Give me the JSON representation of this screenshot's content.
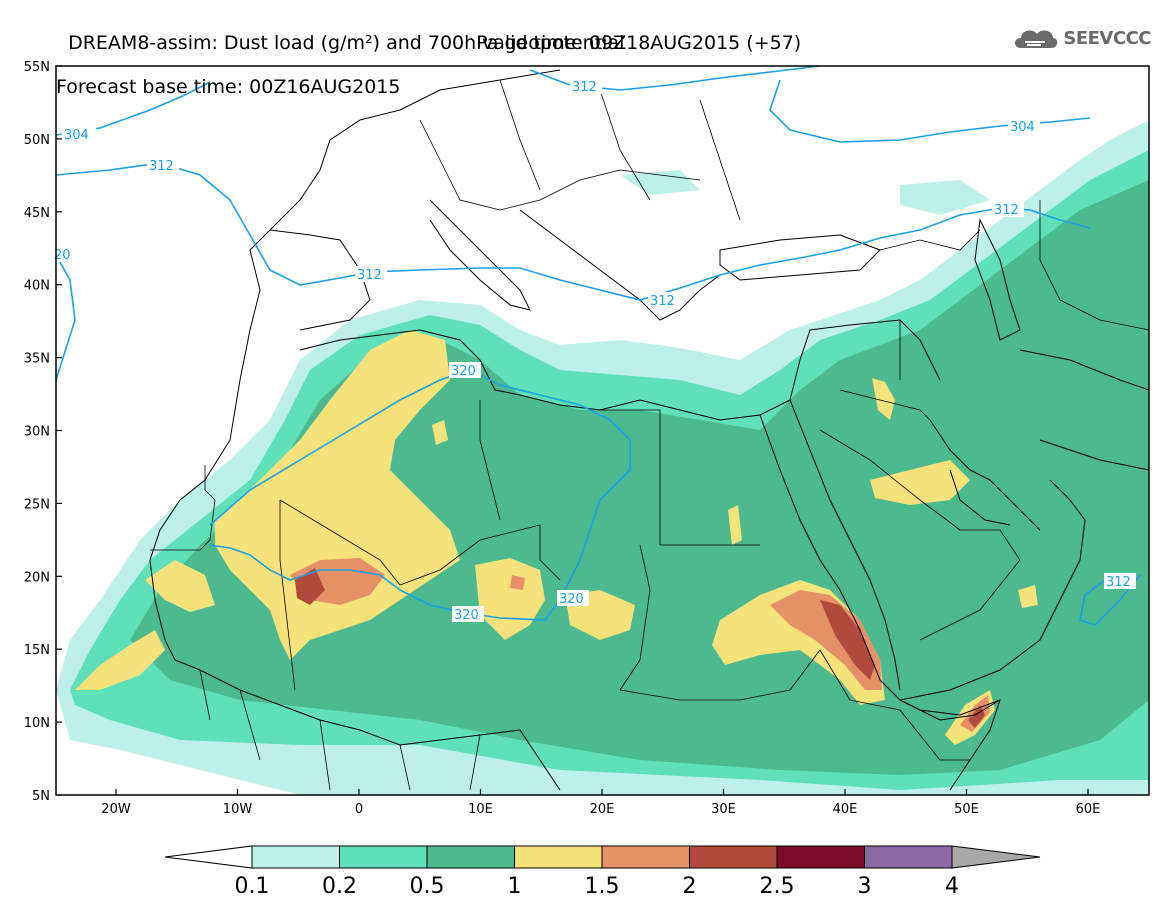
{
  "title": {
    "line1": "DREAM8-assim: Dust load (g/m²) and 700hPa geopotential",
    "line2": "Forecast base time: 00Z16AUG2015",
    "valid": "valid time: 09Z18AUG2015 (+57)"
  },
  "logo": {
    "text": "SEEVCCC",
    "icon": "cloud-icon"
  },
  "axes": {
    "lat_labels": [
      "55N",
      "50N",
      "45N",
      "40N",
      "35N",
      "30N",
      "25N",
      "20N",
      "15N",
      "10N",
      "5N"
    ],
    "lon_labels": [
      "20W",
      "10W",
      "0",
      "10E",
      "20E",
      "30E",
      "40E",
      "50E",
      "60E"
    ]
  },
  "colorbar": {
    "labels": [
      "0.1",
      "0.2",
      "0.5",
      "1",
      "1.5",
      "2",
      "2.5",
      "3",
      "4"
    ],
    "colors": {
      "lt_0_1": "#ffffff",
      "b0_1_0_2": "#bdf0e8",
      "b0_2_0_5": "#5fe0b8",
      "b0_5_1": "#4cb98f",
      "b1_1_5": "#f6e27a",
      "b1_5_2": "#e69068",
      "b2_2_5": "#b04a3a",
      "b2_5_3": "#7a0c2a",
      "b3_4": "#8d6aa3",
      "gt_4": "#a8a8a8"
    }
  },
  "contours": {
    "color": "#1aa0e6",
    "labels": [
      "312",
      "304",
      "312",
      "20",
      "312",
      "312",
      "304",
      "312",
      "312",
      "320",
      "320",
      "320",
      "312"
    ]
  }
}
